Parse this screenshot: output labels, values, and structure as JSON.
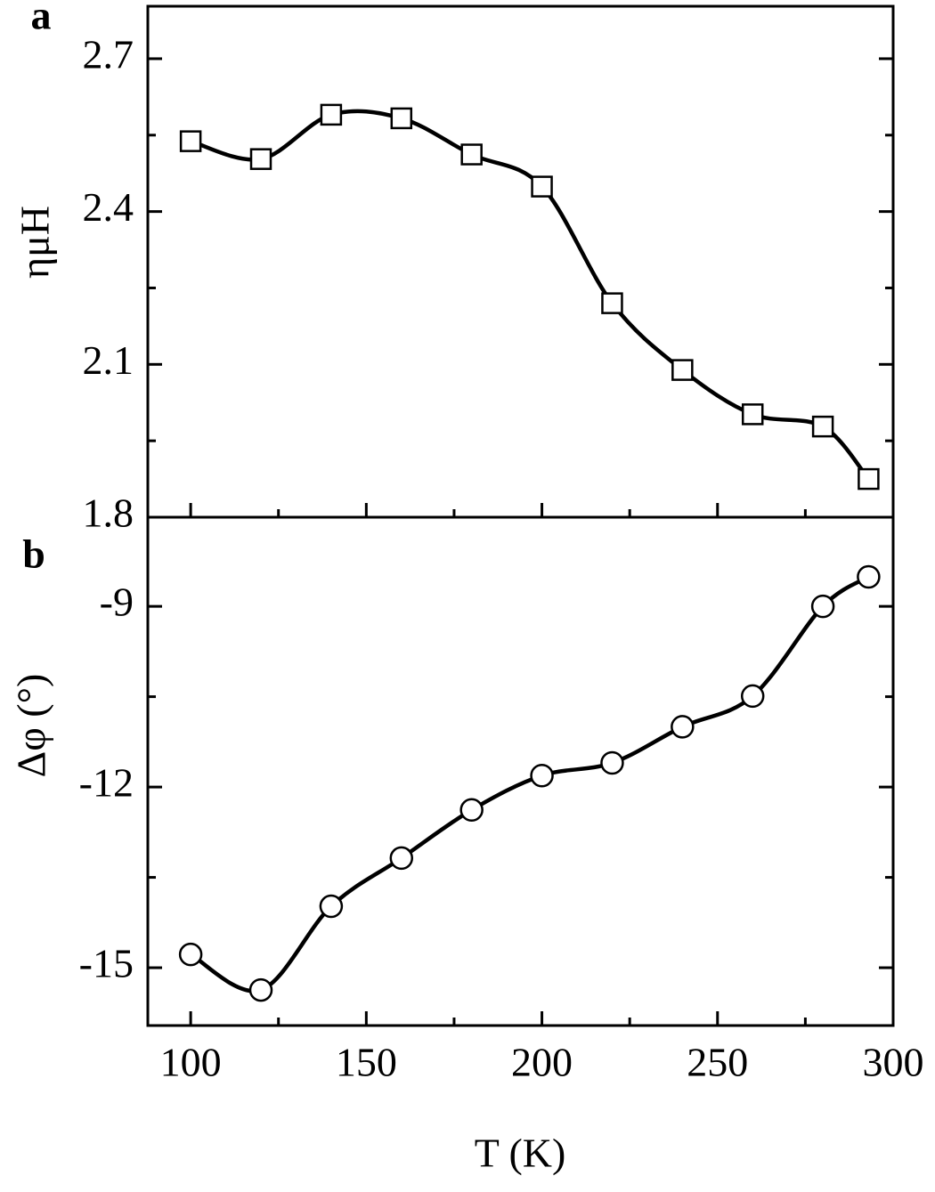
{
  "chart_data": [
    {
      "type": "line",
      "panel_label": "a",
      "ylabel": "ημH",
      "x": [
        100,
        120,
        140,
        160,
        180,
        200,
        220,
        240,
        260,
        280,
        293
      ],
      "series": [
        {
          "color": "#000000",
          "marker": "square",
          "values": [
            2.538,
            2.503,
            2.59,
            2.583,
            2.512,
            2.449,
            2.22,
            2.089,
            2.002,
            1.978,
            1.875
          ]
        }
      ],
      "xlim": [
        87.8,
        300
      ],
      "xticks": [
        100,
        150,
        200,
        250,
        300
      ],
      "xminorticks": [
        125,
        175,
        225,
        275
      ],
      "ylim": [
        1.8,
        2.803
      ],
      "yticks": [
        1.8,
        2.1,
        2.4,
        2.7
      ],
      "yminorticks": [
        1.95,
        2.25,
        2.55
      ]
    },
    {
      "type": "line",
      "panel_label": "b",
      "ylabel": "Δφ (°)",
      "xlabel": "T (K)",
      "x": [
        100,
        120,
        140,
        160,
        180,
        200,
        220,
        240,
        260,
        280,
        293
      ],
      "series": [
        {
          "color": "#000000",
          "marker": "circle",
          "values": [
            -14.78,
            -15.37,
            -13.98,
            -13.18,
            -12.38,
            -11.81,
            -11.6,
            -11.0,
            -10.49,
            -9.0,
            -8.51
          ]
        }
      ],
      "xlim": [
        87.8,
        300
      ],
      "xticks": [
        100,
        150,
        200,
        250,
        300
      ],
      "xminorticks": [
        125,
        175,
        225,
        275
      ],
      "ylim": [
        -15.96,
        -7.52
      ],
      "yticks": [
        -15,
        -12,
        -9
      ],
      "yminorticks": [
        -13.5,
        -10.5
      ]
    }
  ]
}
